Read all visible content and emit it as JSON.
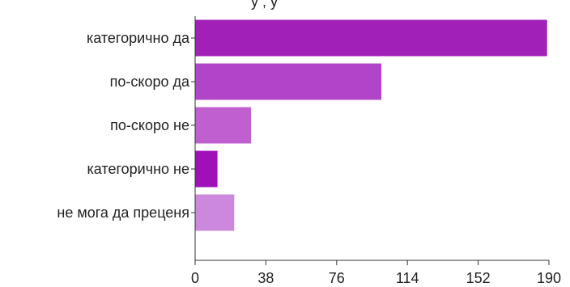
{
  "chart_data": {
    "type": "bar",
    "orientation": "horizontal",
    "categories": [
      "категорично да",
      "по-скоро да",
      "по-скоро не",
      "категорично не",
      "не мога да преценя"
    ],
    "values": [
      189,
      100,
      30,
      12,
      21
    ],
    "bar_colors": [
      "#a020b8",
      "#b144c8",
      "#c060d0",
      "#a010b8",
      "#cc88dc"
    ],
    "xlim": [
      0,
      190
    ],
    "xticks": [
      "0",
      "38",
      "76",
      "114",
      "152",
      "190"
    ],
    "grid": false,
    "legend": "none"
  },
  "clipped_title": "у                             ,                              у"
}
